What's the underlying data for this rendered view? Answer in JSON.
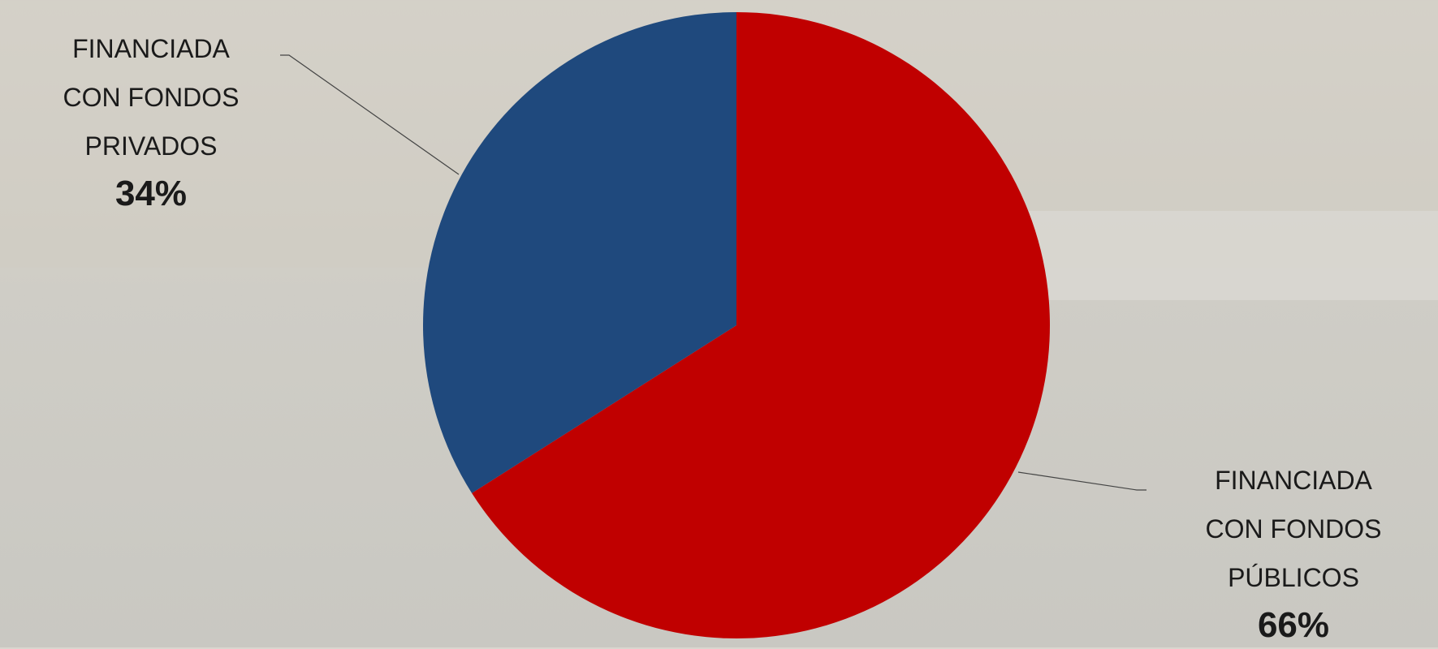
{
  "chart_data": {
    "type": "pie",
    "categories": [
      "FINANCIADA CON FONDOS PÚBLICOS",
      "FINANCIADA CON FONDOS PRIVADOS"
    ],
    "values": [
      66,
      34
    ],
    "value_labels": [
      "66%",
      "34%"
    ],
    "colors": [
      "#c00000",
      "#1f497d"
    ]
  }
}
